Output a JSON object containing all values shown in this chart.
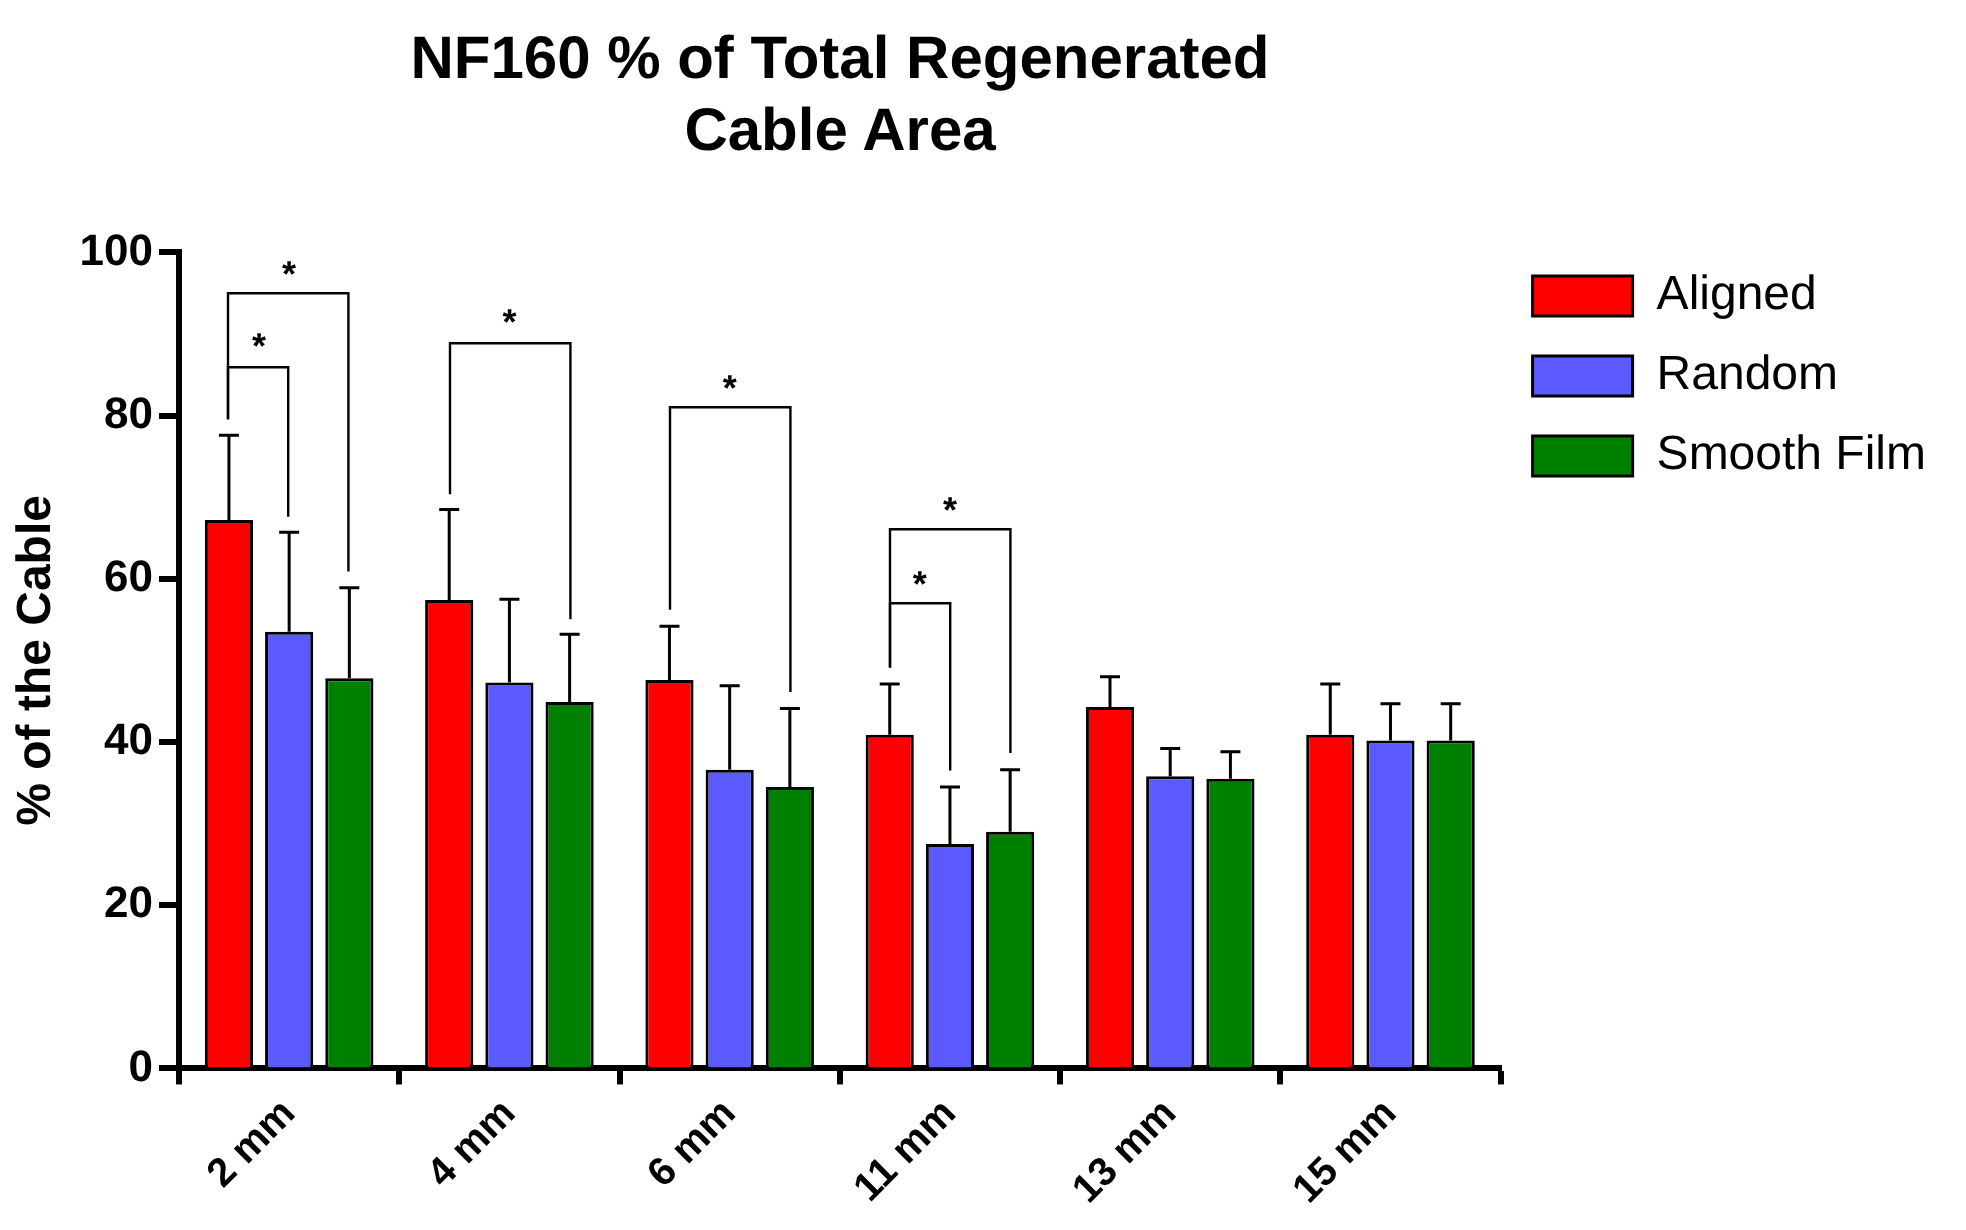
{
  "chart_data": {
    "type": "bar",
    "title": "NF160 % of Total Regenerated Cable Area",
    "ylabel": "% of the Cable",
    "categories": [
      "2 mm",
      "4 mm",
      "6 mm",
      "11 mm",
      "13 mm",
      "15 mm"
    ],
    "series": [
      {
        "name": "Aligned",
        "color": "#ff0000",
        "values": [
          67.2,
          57.4,
          47.6,
          40.9,
          44.3,
          40.9
        ],
        "errors": [
          [
            67.2,
            77.6
          ],
          [
            57.4,
            68.5
          ],
          [
            47.6,
            54.2
          ],
          [
            40.9,
            47.1
          ],
          [
            44.3,
            48.0
          ],
          [
            40.9,
            47.1
          ]
        ]
      },
      {
        "name": "Random",
        "color": "#5a5aff",
        "values": [
          53.5,
          47.3,
          36.6,
          27.5,
          35.8,
          40.2
        ],
        "errors": [
          [
            53.5,
            65.7
          ],
          [
            47.3,
            57.5
          ],
          [
            36.6,
            46.9
          ],
          [
            27.5,
            34.5
          ],
          [
            35.8,
            39.2
          ],
          [
            40.2,
            44.7
          ]
        ]
      },
      {
        "name": "Smooth Film",
        "color": "#008000",
        "values": [
          47.8,
          44.9,
          34.5,
          29.0,
          35.5,
          40.2
        ],
        "errors": [
          [
            47.8,
            58.9
          ],
          [
            44.9,
            53.2
          ],
          [
            34.5,
            44.1
          ],
          [
            29.0,
            36.6
          ],
          [
            35.5,
            38.8
          ],
          [
            40.2,
            44.7
          ]
        ]
      }
    ],
    "annotations": [
      "*",
      "*",
      "*",
      "*",
      "*",
      "*"
    ],
    "ylim": [
      0,
      100
    ],
    "yticks": [
      0,
      20,
      40,
      60,
      80,
      100
    ],
    "grid": false,
    "legend": "top right"
  }
}
